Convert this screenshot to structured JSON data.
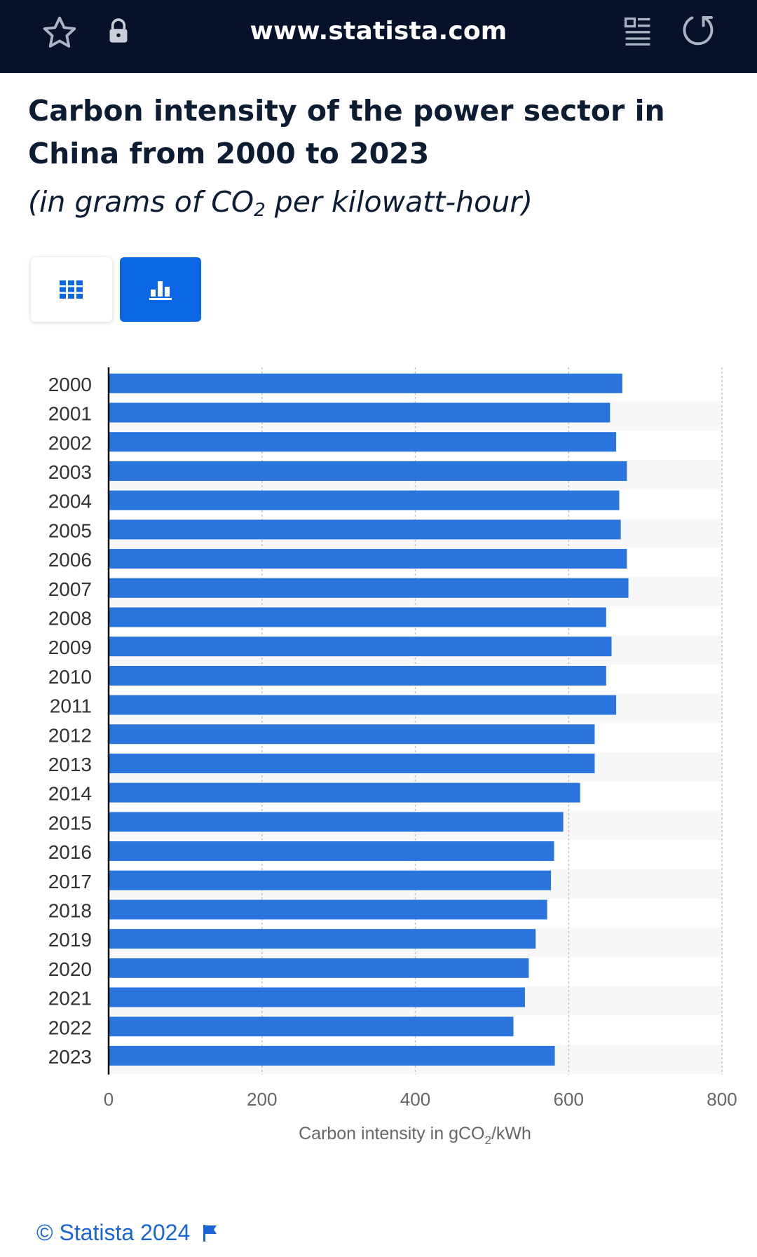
{
  "browser": {
    "url": "www.statista.com",
    "icons": {
      "favorite": "star-icon",
      "security": "lock-icon",
      "reader": "reader-mode-icon",
      "reload": "reload-icon"
    }
  },
  "header": {
    "title": "Carbon intensity of the power sector in China from 2000 to 2023",
    "subtitle_prefix": "(in grams of CO",
    "subtitle_sub": "2",
    "subtitle_suffix": " per kilowatt-hour)"
  },
  "view_toggle": {
    "table_icon": "grid-icon",
    "chart_icon": "bar-chart-icon",
    "active": "chart"
  },
  "chart_data": {
    "type": "bar",
    "orientation": "horizontal",
    "categories": [
      "2000",
      "2001",
      "2002",
      "2003",
      "2004",
      "2005",
      "2006",
      "2007",
      "2008",
      "2009",
      "2010",
      "2011",
      "2012",
      "2013",
      "2014",
      "2015",
      "2016",
      "2017",
      "2018",
      "2019",
      "2020",
      "2021",
      "2022",
      "2023"
    ],
    "values": [
      670,
      654,
      662,
      676,
      666,
      668,
      676,
      678,
      649,
      656,
      649,
      662,
      634,
      634,
      615,
      593,
      581,
      577,
      572,
      557,
      548,
      543,
      528,
      582
    ],
    "xlabel_prefix": "Carbon intensity in gCO",
    "xlabel_sub": "2",
    "xlabel_suffix": "/kWh",
    "xlim": [
      0,
      800
    ],
    "xticks": [
      0,
      200,
      400,
      600,
      800
    ],
    "grid": true,
    "bar_color": "#2a74dd"
  },
  "footer": {
    "copyright": "© Statista 2024",
    "flag_icon": "flag-icon"
  }
}
